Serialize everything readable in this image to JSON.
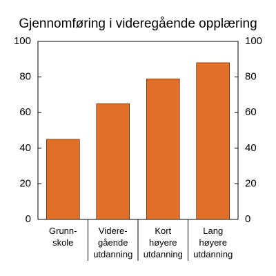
{
  "chart_data": {
    "type": "bar",
    "title": "Gjennomføring i videregående opplæring",
    "categories": [
      "Grunn-\nskole",
      "Videre-\ngående\nutdanning",
      "Kort\nhøyere\nutdanning",
      "Lang\nhøyere\nutdanning"
    ],
    "values": [
      45,
      65,
      79,
      88
    ],
    "color": "#e07028",
    "ylim": [
      0,
      100
    ],
    "yticks": [
      0,
      20,
      40,
      60,
      80,
      100
    ],
    "y2lim": [
      0,
      100
    ],
    "y2ticks": [
      0,
      20,
      40,
      60,
      80,
      100
    ]
  }
}
